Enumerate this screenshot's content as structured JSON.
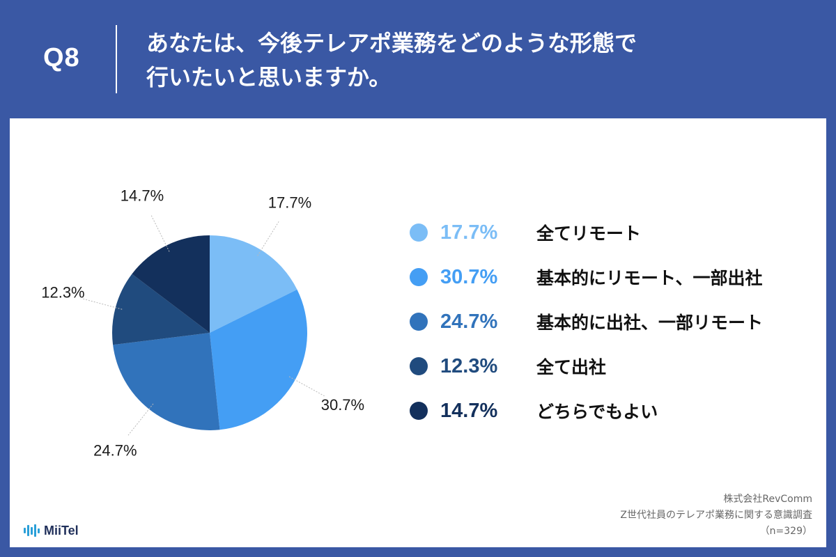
{
  "header": {
    "question_number": "Q8",
    "question_line1": "あなたは、今後テレアポ業務をどのような形態で",
    "question_line2": "行いたいと思いますか。"
  },
  "chart_data": {
    "type": "pie",
    "title": "",
    "start_angle_deg": 0,
    "direction": "clockwise",
    "slices": [
      {
        "label": "全てリモート",
        "value": 17.7,
        "display": "17.7%",
        "color": "#7bbdf6"
      },
      {
        "label": "基本的にリモート、一部出社",
        "value": 30.7,
        "display": "30.7%",
        "color": "#449ef4"
      },
      {
        "label": "基本的に出社、一部リモート",
        "value": 24.7,
        "display": "24.7%",
        "color": "#3173bb"
      },
      {
        "label": "全て出社",
        "value": 12.3,
        "display": "12.3%",
        "color": "#204b7e"
      },
      {
        "label": "どちらでもよい",
        "value": 14.7,
        "display": "14.7%",
        "color": "#13305c"
      }
    ],
    "legend_placement": "right"
  },
  "logo": {
    "name": "MiiTel",
    "icon": "sound-wave-icon",
    "color": "#2a9fd8"
  },
  "source": {
    "company": "株式会社RevComm",
    "survey": "Z世代社員のテレアポ業務に関する意識調査",
    "sample": "（n=329）"
  }
}
